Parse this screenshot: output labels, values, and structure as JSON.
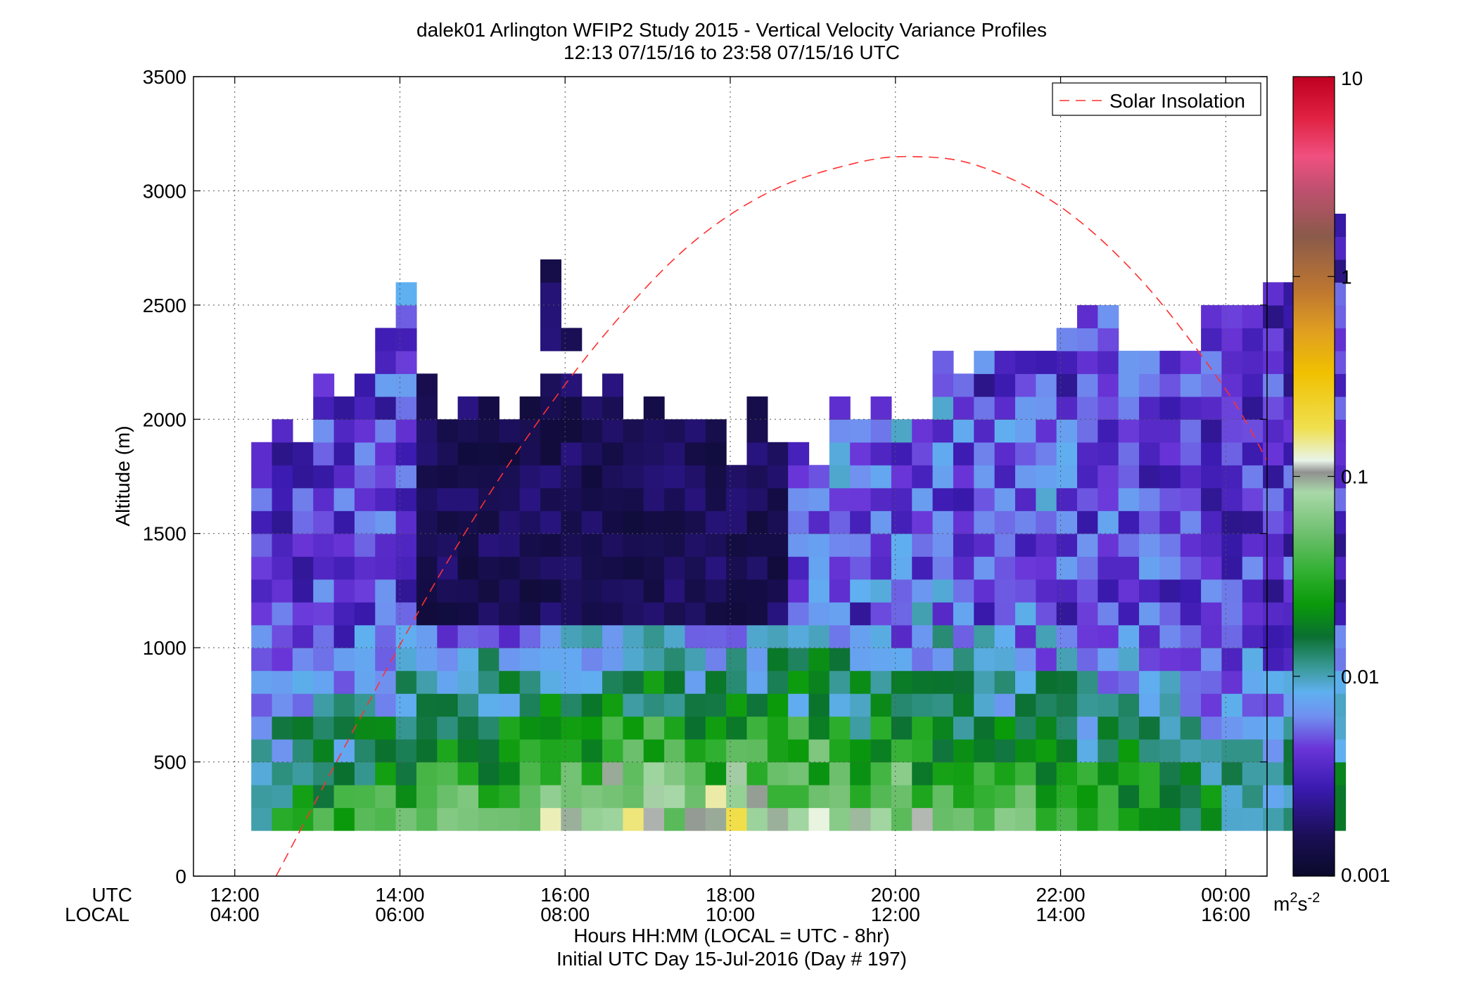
{
  "figure": {
    "title_line1": "dalek01 Arlington WFIP2 Study 2015 - Vertical Velocity Variance Profiles",
    "title_line2": "12:13 07/15/16 to 23:58 07/15/16  UTC",
    "utc_label": "UTC",
    "local_label": "LOCAL",
    "xlabel_line1": "Hours HH:MM  (LOCAL = UTC - 8hr)",
    "xlabel_line2": "Initial UTC Day 15-Jul-2016 (Day # 197)",
    "ylabel": "Altitude (m)",
    "legend_label": "Solar Insolation",
    "colorbar_unit_base": "m",
    "colorbar_unit_exp1": "2",
    "colorbar_unit_mid": "s",
    "colorbar_unit_exp2": "-2"
  },
  "chart_data": {
    "type": "heatmap",
    "title": "dalek01 Arlington WFIP2 Study 2015 - Vertical Velocity Variance Profiles",
    "subtitle": "12:13 07/15/16 to 23:58 07/15/16  UTC",
    "xlabel": "Hours HH:MM  (LOCAL = UTC - 8hr)",
    "ylabel": "Altitude (m)",
    "xlim_hours_utc": [
      11.5,
      24.5
    ],
    "ylim": [
      0,
      3500
    ],
    "grid": true,
    "legend_position": "top-right",
    "x_ticks_hours": [
      12,
      14,
      16,
      18,
      20,
      22,
      24
    ],
    "x_ticks_utc": [
      "12:00",
      "14:00",
      "16:00",
      "18:00",
      "20:00",
      "22:00",
      "00:00"
    ],
    "x_ticks_local": [
      "04:00",
      "06:00",
      "08:00",
      "10:00",
      "12:00",
      "14:00",
      "16:00"
    ],
    "y_ticks": [
      0,
      500,
      1000,
      1500,
      2000,
      2500,
      3000,
      3500
    ],
    "colorbar": {
      "scale": "log",
      "range": [
        0.001,
        10
      ],
      "ticks": [
        0.001,
        0.01,
        0.1,
        1,
        10
      ],
      "tick_labels": [
        "0.001",
        "0.01",
        "0.1",
        "1",
        "10"
      ],
      "unit": "m2s-2",
      "stops": [
        [
          "#0a0a2a",
          0.0
        ],
        [
          "#1a0f55",
          0.05
        ],
        [
          "#3a1ab0",
          0.11
        ],
        [
          "#6a35d8",
          0.16
        ],
        [
          "#7090f0",
          0.2
        ],
        [
          "#5fb0f0",
          0.23
        ],
        [
          "#3a9a9a",
          0.26
        ],
        [
          "#0a7030",
          0.3
        ],
        [
          "#0a9a0a",
          0.34
        ],
        [
          "#30b030",
          0.38
        ],
        [
          "#70c070",
          0.43
        ],
        [
          "#a8d8a8",
          0.48
        ],
        [
          "#e8f4e8",
          0.52
        ],
        [
          "#909090",
          0.505
        ],
        [
          "#f0e050",
          0.56
        ],
        [
          "#f0c000",
          0.63
        ],
        [
          "#e0a020",
          0.68
        ],
        [
          "#c07830",
          0.73
        ],
        [
          "#8a5a4a",
          0.8
        ],
        [
          "#c05070",
          0.86
        ],
        [
          "#f05080",
          0.9
        ],
        [
          "#e02040",
          0.95
        ],
        [
          "#c00020",
          1.0
        ]
      ]
    },
    "heatmap_grid": {
      "time_start_hours_utc": 12.2,
      "time_step_hours": 0.25,
      "alt_start_m": 200,
      "alt_step_m": 100,
      "column_tops_m": [
        1900,
        2000,
        1900,
        2200,
        2100,
        2200,
        2400,
        2600,
        2200,
        2000,
        2100,
        2100,
        2000,
        2100,
        2700,
        2400,
        2100,
        2200,
        2000,
        2100,
        2000,
        2000,
        2000,
        1800,
        2100,
        1900,
        1900,
        1800,
        2100,
        2000,
        2100,
        2000,
        2000,
        2300,
        2200,
        2300,
        2300,
        2300,
        2300,
        2400,
        2500,
        2500,
        2300,
        2300,
        2300,
        2300,
        2500,
        2500,
        2500,
        2600,
        2600,
        2600,
        2900
      ],
      "sparse_gaps": [
        [
          13,
          2200
        ],
        [
          14,
          2200
        ],
        [
          15,
          2200
        ],
        [
          21,
          2100
        ],
        [
          22,
          2100
        ],
        [
          24,
          2100
        ]
      ]
    },
    "series": [
      {
        "name": "Solar Insolation",
        "style": "dashed",
        "color": "#ff3030",
        "x_hours_utc": [
          12.5,
          13.5,
          14.5,
          15.5,
          16.5,
          17.5,
          18.5,
          19.5,
          20.2,
          21.0,
          22.0,
          23.0,
          24.0,
          24.5
        ],
        "y_m": [
          0,
          680,
          1330,
          1900,
          2380,
          2760,
          3000,
          3120,
          3150,
          3110,
          2930,
          2600,
          2130,
          1820
        ]
      }
    ]
  }
}
